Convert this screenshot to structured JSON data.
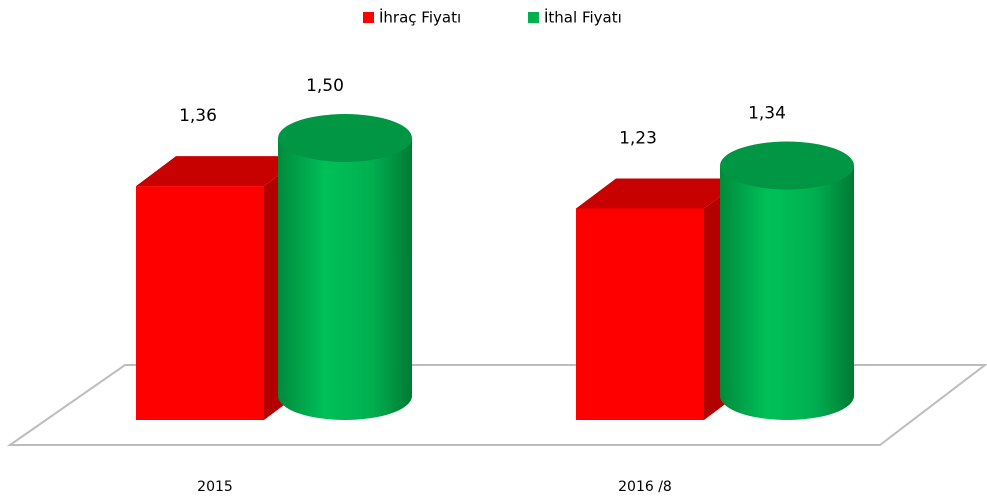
{
  "chart_data": {
    "type": "bar3d",
    "categories": [
      "2015",
      "2016 /8"
    ],
    "series": [
      {
        "name": "İhraç Fiyatı",
        "color": "#ff0000",
        "values": [
          1.36,
          1.23
        ],
        "value_labels": [
          "1,36",
          "1,23"
        ]
      },
      {
        "name": "İthal Fiyatı",
        "color": "#00b050",
        "values": [
          1.5,
          1.34
        ],
        "value_labels": [
          "1,50",
          "1,34"
        ]
      }
    ],
    "legend": "top"
  }
}
